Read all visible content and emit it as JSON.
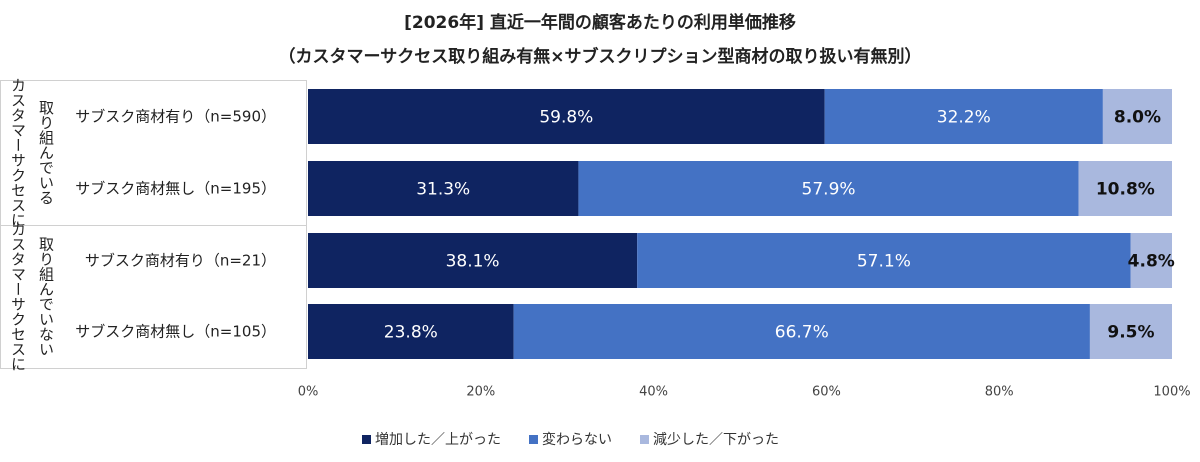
{
  "chart_data": {
    "type": "bar",
    "orientation": "horizontal",
    "stacked": true,
    "title": "[2026年] 直近一年間の顧客あたりの利用単価推移",
    "subtitle": "（カスタマーサクセス取り組み有無×サブスクリプション型商材の取り扱い有無別）",
    "groups": [
      {
        "label_line1": "カスタマーサクセスに",
        "label_line2": "取り組んでいる"
      },
      {
        "label_line1": "カスタマーサクセスに",
        "label_line2": "取り組んでいない"
      }
    ],
    "categories": [
      "サブスク商材有り（n=590）",
      "サブスク商材無し（n=195）",
      "サブスク商材有り（n=21）",
      "サブスク商材無し（n=105）"
    ],
    "category_group": [
      0,
      0,
      1,
      1
    ],
    "series": [
      {
        "name": "増加した／上がった",
        "color": "#0f2461",
        "label_color": "#ffffff",
        "values": [
          59.8,
          31.3,
          38.1,
          23.8
        ]
      },
      {
        "name": "変わらない",
        "color": "#4472c4",
        "label_color": "#ffffff",
        "values": [
          32.2,
          57.9,
          57.1,
          66.7
        ]
      },
      {
        "name": "減少した／下がった",
        "color": "#a9b8de",
        "label_color": "#111111",
        "values": [
          8.0,
          10.8,
          4.8,
          9.5
        ]
      }
    ],
    "xlim": [
      0,
      100
    ],
    "xticks": [
      "0%",
      "20%",
      "40%",
      "60%",
      "80%",
      "100%"
    ],
    "value_suffix": "%",
    "grid": false,
    "legend_position": "bottom"
  }
}
